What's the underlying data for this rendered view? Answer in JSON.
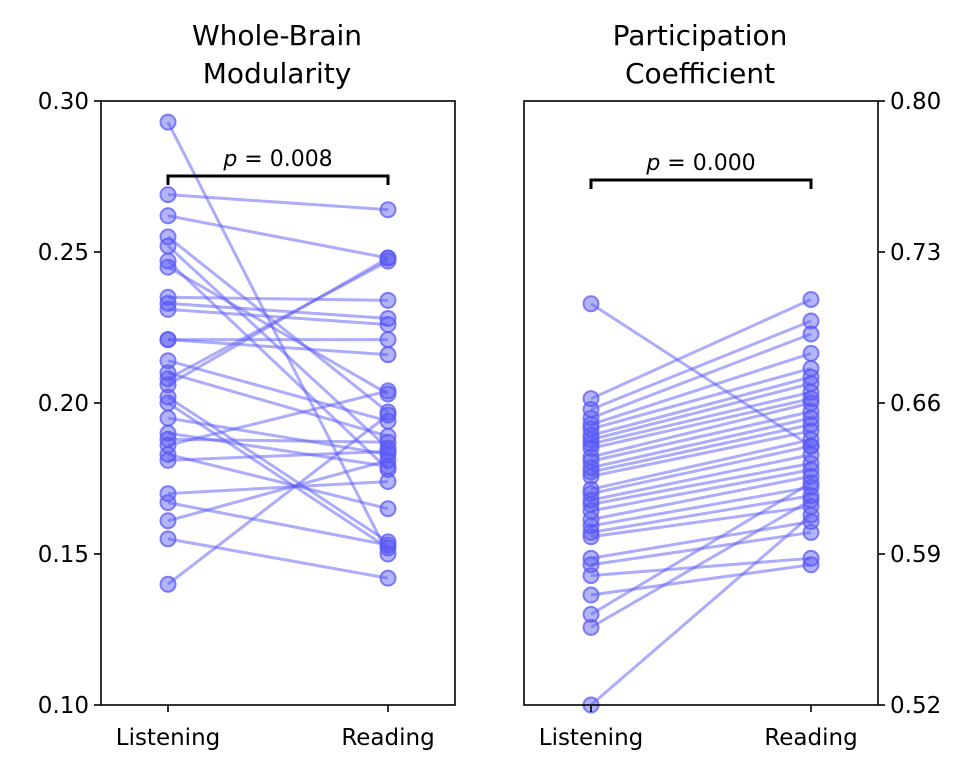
{
  "colors": {
    "series": "#5959f5",
    "axis": "#000000"
  },
  "chart_data": [
    {
      "type": "line",
      "title": [
        "Whole-Brain",
        "Modularity"
      ],
      "categories": [
        "Listening",
        "Reading"
      ],
      "ylim": [
        0.1,
        0.3
      ],
      "yticks": [
        0.1,
        0.15,
        0.2,
        0.25,
        0.3
      ],
      "ytick_labels": [
        "0.10",
        "0.15",
        "0.20",
        "0.25",
        "0.30"
      ],
      "ytick_side": "left",
      "annotation": {
        "text": "p = 0.008",
        "y": 0.275
      },
      "pairs": [
        [
          0.293,
          0.15
        ],
        [
          0.269,
          0.264
        ],
        [
          0.262,
          0.248
        ],
        [
          0.255,
          0.197
        ],
        [
          0.252,
          0.185
        ],
        [
          0.247,
          0.178
        ],
        [
          0.245,
          0.203
        ],
        [
          0.235,
          0.234
        ],
        [
          0.233,
          0.228
        ],
        [
          0.231,
          0.226
        ],
        [
          0.221,
          0.221
        ],
        [
          0.221,
          0.216
        ],
        [
          0.214,
          0.194
        ],
        [
          0.21,
          0.189
        ],
        [
          0.208,
          0.247
        ],
        [
          0.206,
          0.248
        ],
        [
          0.202,
          0.154
        ],
        [
          0.2,
          0.152
        ],
        [
          0.195,
          0.183
        ],
        [
          0.19,
          0.179
        ],
        [
          0.188,
          0.187
        ],
        [
          0.186,
          0.204
        ],
        [
          0.183,
          0.165
        ],
        [
          0.181,
          0.184
        ],
        [
          0.17,
          0.174
        ],
        [
          0.167,
          0.153
        ],
        [
          0.161,
          0.181
        ],
        [
          0.155,
          0.142
        ],
        [
          0.14,
          0.196
        ]
      ]
    },
    {
      "type": "line",
      "title": [
        "Participation",
        "Coefficient"
      ],
      "categories": [
        "Listening",
        "Reading"
      ],
      "ylim": [
        0.52,
        0.8
      ],
      "yticks": [
        0.52,
        0.59,
        0.66,
        0.73,
        0.8
      ],
      "ytick_labels": [
        "0.52",
        "0.59",
        "0.66",
        "0.73",
        "0.80"
      ],
      "ytick_side": "right",
      "annotation": {
        "text": "p = 0.000",
        "y": 0.762
      },
      "pairs": [
        [
          0.706,
          0.64
        ],
        [
          0.662,
          0.708
        ],
        [
          0.657,
          0.698
        ],
        [
          0.653,
          0.692
        ],
        [
          0.65,
          0.683
        ],
        [
          0.648,
          0.676
        ],
        [
          0.645,
          0.672
        ],
        [
          0.643,
          0.669
        ],
        [
          0.641,
          0.665
        ],
        [
          0.639,
          0.662
        ],
        [
          0.635,
          0.66
        ],
        [
          0.633,
          0.656
        ],
        [
          0.63,
          0.653
        ],
        [
          0.628,
          0.65
        ],
        [
          0.626,
          0.647
        ],
        [
          0.62,
          0.643
        ],
        [
          0.618,
          0.64
        ],
        [
          0.615,
          0.636
        ],
        [
          0.613,
          0.632
        ],
        [
          0.61,
          0.629
        ],
        [
          0.606,
          0.626
        ],
        [
          0.603,
          0.621
        ],
        [
          0.6,
          0.617
        ],
        [
          0.598,
          0.612
        ],
        [
          0.588,
          0.605
        ],
        [
          0.585,
          0.6
        ],
        [
          0.58,
          0.588
        ],
        [
          0.571,
          0.585
        ],
        [
          0.562,
          0.623
        ],
        [
          0.556,
          0.615
        ],
        [
          0.52,
          0.608
        ]
      ]
    }
  ]
}
